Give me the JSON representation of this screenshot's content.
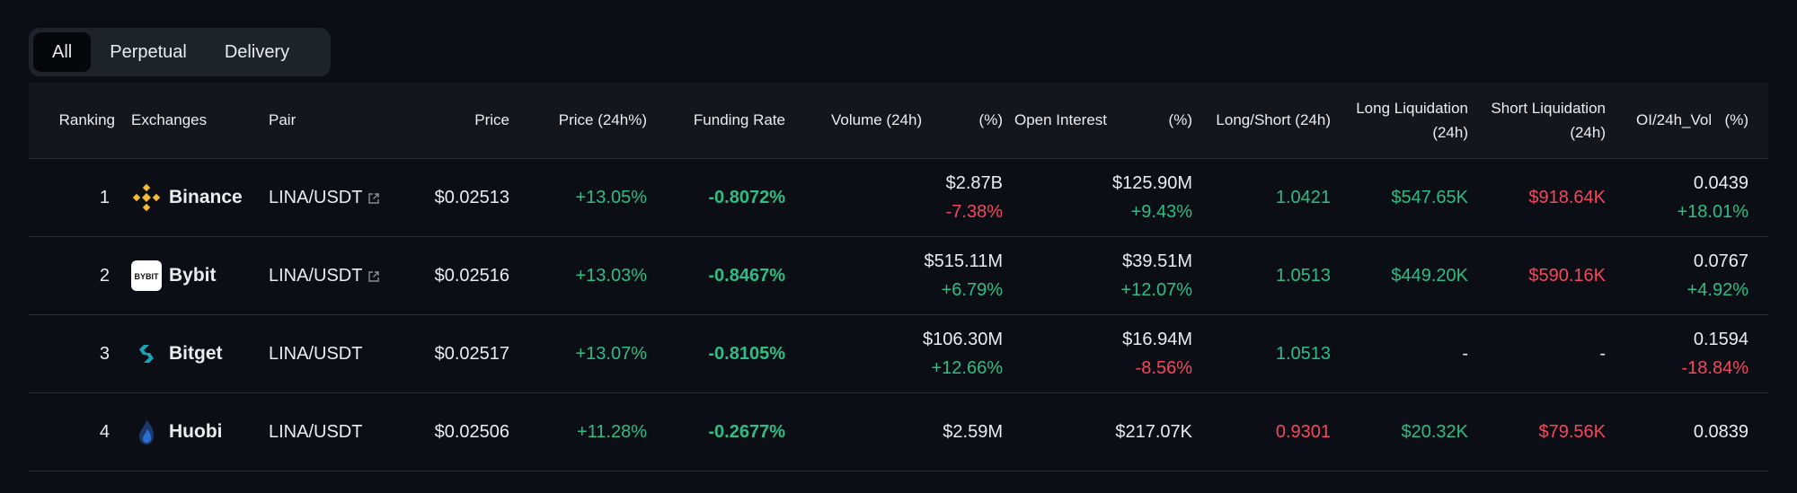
{
  "tabs": [
    {
      "label": "All",
      "active": true
    },
    {
      "label": "Perpetual",
      "active": false
    },
    {
      "label": "Delivery",
      "active": false
    }
  ],
  "columns": {
    "ranking": "Ranking",
    "exchanges": "Exchanges",
    "pair": "Pair",
    "price": "Price",
    "price_change": "Price (24h%)",
    "funding_rate": "Funding Rate",
    "volume": "Volume (24h)",
    "volume_pct": "(%)",
    "open_interest": "Open Interest",
    "oi_pct": "(%)",
    "long_short": "Long/Short (24h)",
    "long_liq_1": "Long Liquidation",
    "long_liq_2": "(24h)",
    "short_liq_1": "Short Liquidation",
    "short_liq_2": "(24h)",
    "oi_vol": "OI/24h_Vol",
    "oi_vol_pct": "(%)"
  },
  "colors": {
    "green": "#2ebd85",
    "red": "#f6465d"
  },
  "rows": [
    {
      "rank": "1",
      "exchange": "Binance",
      "logo": "binance-icon",
      "pair": "LINA/USDT",
      "external_link": true,
      "price": "$0.02513",
      "price_change": "+13.05%",
      "funding": "-0.8072%",
      "volume": "$2.87B",
      "volume_pct": "-7.38%",
      "volume_pct_color": "red",
      "oi": "$125.90M",
      "oi_pct": "+9.43%",
      "oi_pct_color": "green",
      "long_short": "1.0421",
      "long_short_color": "green",
      "long_liq": "$547.65K",
      "short_liq": "$918.64K",
      "oi_vol": "0.0439",
      "oi_vol_pct": "+18.01%",
      "oi_vol_pct_color": "green"
    },
    {
      "rank": "2",
      "exchange": "Bybit",
      "logo": "bybit-icon",
      "pair": "LINA/USDT",
      "external_link": true,
      "price": "$0.02516",
      "price_change": "+13.03%",
      "funding": "-0.8467%",
      "volume": "$515.11M",
      "volume_pct": "+6.79%",
      "volume_pct_color": "green",
      "oi": "$39.51M",
      "oi_pct": "+12.07%",
      "oi_pct_color": "green",
      "long_short": "1.0513",
      "long_short_color": "green",
      "long_liq": "$449.20K",
      "short_liq": "$590.16K",
      "oi_vol": "0.0767",
      "oi_vol_pct": "+4.92%",
      "oi_vol_pct_color": "green"
    },
    {
      "rank": "3",
      "exchange": "Bitget",
      "logo": "bitget-icon",
      "pair": "LINA/USDT",
      "external_link": false,
      "price": "$0.02517",
      "price_change": "+13.07%",
      "funding": "-0.8105%",
      "volume": "$106.30M",
      "volume_pct": "+12.66%",
      "volume_pct_color": "green",
      "oi": "$16.94M",
      "oi_pct": "-8.56%",
      "oi_pct_color": "red",
      "long_short": "1.0513",
      "long_short_color": "green",
      "long_liq": "-",
      "short_liq": "-",
      "oi_vol": "0.1594",
      "oi_vol_pct": "-18.84%",
      "oi_vol_pct_color": "red"
    },
    {
      "rank": "4",
      "exchange": "Huobi",
      "logo": "huobi-icon",
      "pair": "LINA/USDT",
      "external_link": false,
      "price": "$0.02506",
      "price_change": "+11.28%",
      "funding": "-0.2677%",
      "volume": "$2.59M",
      "volume_pct": "",
      "volume_pct_color": "green",
      "oi": "$217.07K",
      "oi_pct": "",
      "oi_pct_color": "green",
      "long_short": "0.9301",
      "long_short_color": "red",
      "long_liq": "$20.32K",
      "short_liq": "$79.56K",
      "oi_vol": "0.0839",
      "oi_vol_pct": "",
      "oi_vol_pct_color": "green"
    }
  ],
  "bybit_logo_text": "BYBIT"
}
